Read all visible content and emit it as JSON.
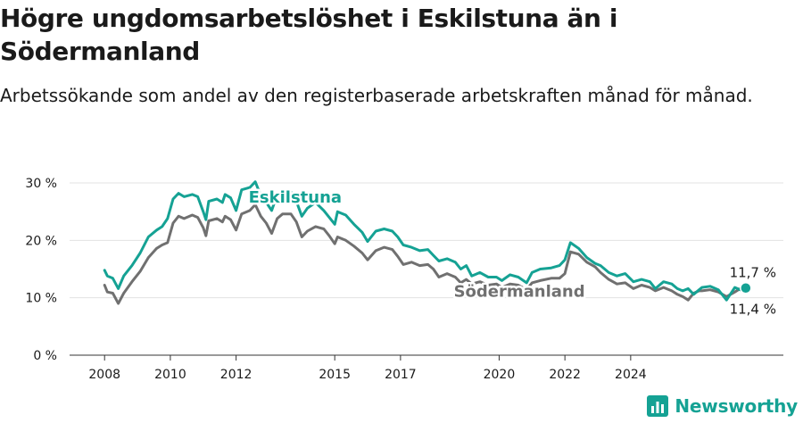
{
  "header": {
    "title": "Högre ungdomsarbetslöshet i Eskilstuna än i Södermanland",
    "subtitle": "Arbetssökande som andel av den registerbaserade arbetskraften månad för månad."
  },
  "brand": {
    "name": "Newsworthy",
    "icon": "newsworthy-logo-icon",
    "color": "#15a294"
  },
  "chart_data": {
    "type": "line",
    "title": "Högre ungdomsarbetslöshet i Eskilstuna än i Södermanland",
    "subtitle": "Arbetssökande som andel av den registerbaserade arbetskraften månad för månad.",
    "xlabel": "",
    "ylabel": "",
    "ylim": [
      0,
      30
    ],
    "y_ticks": [
      0,
      10,
      20,
      30
    ],
    "y_tick_labels": [
      "0 %",
      "10 %",
      "20 %",
      "30 %"
    ],
    "x_ticks": [
      2008,
      2010,
      2012,
      2015,
      2017,
      2020,
      2022,
      2024
    ],
    "x_tick_labels": [
      "2008",
      "2010",
      "2012",
      "2015",
      "2017",
      "2020",
      "2022",
      "2024"
    ],
    "grid": "horizontal",
    "series": [
      {
        "name": "Eskilstuna",
        "color": "#15a294",
        "end_label": "11,7 %",
        "points": [
          [
            "2008-01",
            14.8
          ],
          [
            "2008-02",
            13.8
          ],
          [
            "2008-04",
            13.4
          ],
          [
            "2008-06",
            11.6
          ],
          [
            "2008-08",
            13.8
          ],
          [
            "2008-11",
            15.6
          ],
          [
            "2009-02",
            17.8
          ],
          [
            "2009-05",
            20.6
          ],
          [
            "2009-08",
            21.8
          ],
          [
            "2009-10",
            22.4
          ],
          [
            "2009-12",
            23.8
          ],
          [
            "2010-02",
            27.2
          ],
          [
            "2010-04",
            28.2
          ],
          [
            "2010-06",
            27.6
          ],
          [
            "2010-09",
            28.0
          ],
          [
            "2010-11",
            27.6
          ],
          [
            "2011-01",
            25.0
          ],
          [
            "2011-02",
            23.6
          ],
          [
            "2011-03",
            26.8
          ],
          [
            "2011-06",
            27.2
          ],
          [
            "2011-08",
            26.6
          ],
          [
            "2011-09",
            28.0
          ],
          [
            "2011-11",
            27.4
          ],
          [
            "2012-01",
            25.2
          ],
          [
            "2012-03",
            28.8
          ],
          [
            "2012-06",
            29.2
          ],
          [
            "2012-08",
            30.2
          ],
          [
            "2012-10",
            27.8
          ],
          [
            "2012-12",
            26.6
          ],
          [
            "2013-02",
            25.2
          ],
          [
            "2013-04",
            28.0
          ],
          [
            "2013-06",
            28.2
          ],
          [
            "2013-09",
            28.4
          ],
          [
            "2013-11",
            26.8
          ],
          [
            "2014-01",
            24.2
          ],
          [
            "2014-03",
            25.6
          ],
          [
            "2014-06",
            26.6
          ],
          [
            "2014-09",
            25.2
          ],
          [
            "2014-11",
            24.0
          ],
          [
            "2015-01",
            22.8
          ],
          [
            "2015-02",
            25.0
          ],
          [
            "2015-05",
            24.4
          ],
          [
            "2015-08",
            22.8
          ],
          [
            "2015-11",
            21.4
          ],
          [
            "2016-01",
            19.8
          ],
          [
            "2016-04",
            21.6
          ],
          [
            "2016-07",
            22.0
          ],
          [
            "2016-10",
            21.6
          ],
          [
            "2016-12",
            20.6
          ],
          [
            "2017-02",
            19.2
          ],
          [
            "2017-05",
            18.8
          ],
          [
            "2017-08",
            18.2
          ],
          [
            "2017-11",
            18.4
          ],
          [
            "2018-01",
            17.4
          ],
          [
            "2018-03",
            16.4
          ],
          [
            "2018-06",
            16.8
          ],
          [
            "2018-09",
            16.2
          ],
          [
            "2018-11",
            15.0
          ],
          [
            "2019-01",
            15.6
          ],
          [
            "2019-03",
            13.8
          ],
          [
            "2019-06",
            14.4
          ],
          [
            "2019-09",
            13.6
          ],
          [
            "2019-12",
            13.6
          ],
          [
            "2020-02",
            13.0
          ],
          [
            "2020-05",
            14.0
          ],
          [
            "2020-08",
            13.6
          ],
          [
            "2020-11",
            12.6
          ],
          [
            "2021-01",
            14.4
          ],
          [
            "2021-04",
            15.0
          ],
          [
            "2021-08",
            15.2
          ],
          [
            "2021-11",
            15.6
          ],
          [
            "2022-01",
            16.6
          ],
          [
            "2022-03",
            19.6
          ],
          [
            "2022-06",
            18.6
          ],
          [
            "2022-09",
            17.0
          ],
          [
            "2022-12",
            16.0
          ],
          [
            "2023-02",
            15.6
          ],
          [
            "2023-05",
            14.4
          ],
          [
            "2023-08",
            13.8
          ],
          [
            "2023-11",
            14.2
          ],
          [
            "2024-02",
            12.8
          ],
          [
            "2024-05",
            13.2
          ],
          [
            "2024-08",
            12.8
          ],
          [
            "2024-10",
            11.6
          ],
          [
            "2025-01",
            12.8
          ],
          [
            "2025-04",
            12.4
          ],
          [
            "2025-06",
            11.6
          ],
          [
            "2025-08",
            11.2
          ],
          [
            "2025-10",
            11.6
          ],
          [
            "2025-12",
            10.6
          ],
          [
            "2026-02",
            11.4
          ],
          [
            "2026-03",
            11.8
          ],
          [
            "2026-06",
            12.0
          ],
          [
            "2026-09",
            11.4
          ],
          [
            "2026-12",
            9.6
          ],
          [
            "2027-03",
            11.8
          ],
          [
            "2027-05",
            11.4
          ],
          [
            "2027-07",
            11.7
          ]
        ]
      },
      {
        "name": "Södermanland",
        "color": "#707070",
        "end_label": "11,4 %",
        "points": [
          [
            "2008-01",
            12.2
          ],
          [
            "2008-02",
            11.0
          ],
          [
            "2008-04",
            10.8
          ],
          [
            "2008-06",
            9.0
          ],
          [
            "2008-08",
            10.8
          ],
          [
            "2008-11",
            12.8
          ],
          [
            "2009-02",
            14.6
          ],
          [
            "2009-05",
            17.0
          ],
          [
            "2009-08",
            18.6
          ],
          [
            "2009-10",
            19.2
          ],
          [
            "2009-12",
            19.6
          ],
          [
            "2010-02",
            23.0
          ],
          [
            "2010-04",
            24.2
          ],
          [
            "2010-06",
            23.8
          ],
          [
            "2010-09",
            24.4
          ],
          [
            "2010-11",
            24.0
          ],
          [
            "2011-01",
            22.2
          ],
          [
            "2011-02",
            20.8
          ],
          [
            "2011-03",
            23.4
          ],
          [
            "2011-06",
            23.8
          ],
          [
            "2011-08",
            23.2
          ],
          [
            "2011-09",
            24.2
          ],
          [
            "2011-11",
            23.6
          ],
          [
            "2012-01",
            21.8
          ],
          [
            "2012-03",
            24.6
          ],
          [
            "2012-06",
            25.2
          ],
          [
            "2012-08",
            26.2
          ],
          [
            "2012-10",
            24.2
          ],
          [
            "2012-12",
            23.0
          ],
          [
            "2013-02",
            21.2
          ],
          [
            "2013-04",
            23.8
          ],
          [
            "2013-06",
            24.6
          ],
          [
            "2013-09",
            24.6
          ],
          [
            "2013-11",
            23.2
          ],
          [
            "2014-01",
            20.6
          ],
          [
            "2014-03",
            21.6
          ],
          [
            "2014-06",
            22.4
          ],
          [
            "2014-09",
            22.0
          ],
          [
            "2014-11",
            20.8
          ],
          [
            "2015-01",
            19.4
          ],
          [
            "2015-02",
            20.6
          ],
          [
            "2015-05",
            20.0
          ],
          [
            "2015-08",
            19.0
          ],
          [
            "2015-11",
            17.8
          ],
          [
            "2016-01",
            16.6
          ],
          [
            "2016-04",
            18.2
          ],
          [
            "2016-07",
            18.8
          ],
          [
            "2016-10",
            18.4
          ],
          [
            "2016-12",
            17.2
          ],
          [
            "2017-02",
            15.8
          ],
          [
            "2017-05",
            16.2
          ],
          [
            "2017-08",
            15.6
          ],
          [
            "2017-11",
            15.8
          ],
          [
            "2018-01",
            15.0
          ],
          [
            "2018-03",
            13.6
          ],
          [
            "2018-06",
            14.2
          ],
          [
            "2018-09",
            13.6
          ],
          [
            "2018-11",
            12.6
          ],
          [
            "2019-01",
            13.2
          ],
          [
            "2019-03",
            12.4
          ],
          [
            "2019-06",
            12.8
          ],
          [
            "2019-09",
            12.2
          ],
          [
            "2019-12",
            12.4
          ],
          [
            "2020-02",
            11.8
          ],
          [
            "2020-05",
            12.4
          ],
          [
            "2020-08",
            12.2
          ],
          [
            "2020-11",
            11.4
          ],
          [
            "2021-01",
            12.6
          ],
          [
            "2021-04",
            13.0
          ],
          [
            "2021-08",
            13.4
          ],
          [
            "2021-11",
            13.4
          ],
          [
            "2022-01",
            14.2
          ],
          [
            "2022-03",
            18.0
          ],
          [
            "2022-06",
            17.6
          ],
          [
            "2022-09",
            16.2
          ],
          [
            "2022-12",
            15.4
          ],
          [
            "2023-02",
            14.4
          ],
          [
            "2023-05",
            13.2
          ],
          [
            "2023-08",
            12.4
          ],
          [
            "2023-11",
            12.6
          ],
          [
            "2024-02",
            11.6
          ],
          [
            "2024-05",
            12.2
          ],
          [
            "2024-08",
            11.8
          ],
          [
            "2024-10",
            11.2
          ],
          [
            "2025-01",
            11.8
          ],
          [
            "2025-04",
            11.2
          ],
          [
            "2025-06",
            10.6
          ],
          [
            "2025-08",
            10.2
          ],
          [
            "2025-10",
            9.6
          ],
          [
            "2025-12",
            10.8
          ],
          [
            "2026-02",
            11.2
          ],
          [
            "2026-03",
            11.2
          ],
          [
            "2026-06",
            11.4
          ],
          [
            "2026-09",
            11.0
          ],
          [
            "2026-12",
            10.2
          ],
          [
            "2027-03",
            11.0
          ],
          [
            "2027-05",
            11.6
          ],
          [
            "2027-07",
            11.4
          ]
        ]
      }
    ]
  }
}
